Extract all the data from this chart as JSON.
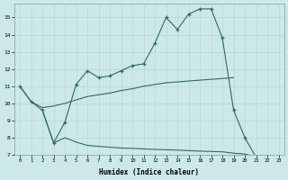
{
  "xlabel": "Humidex (Indice chaleur)",
  "bg_color": "#cde8e8",
  "grid_color": "#b8d8d8",
  "line_color": "#2e6b5e",
  "main_x": [
    0,
    1,
    2,
    3,
    4,
    5,
    6,
    7,
    8,
    9,
    10,
    11,
    12,
    13,
    14,
    15,
    16,
    17,
    18,
    19,
    20,
    21,
    22
  ],
  "main_y": [
    11.0,
    10.1,
    9.6,
    7.7,
    8.9,
    11.1,
    11.9,
    11.5,
    11.6,
    11.9,
    12.2,
    12.3,
    13.5,
    15.0,
    14.3,
    15.2,
    15.5,
    15.5,
    13.8,
    9.6,
    8.0,
    6.85,
    6.65
  ],
  "upper_x": [
    0,
    1,
    2,
    3,
    4,
    5,
    6,
    7,
    8,
    9,
    10,
    11,
    12,
    13,
    14,
    15,
    16,
    17,
    18,
    19
  ],
  "upper_y": [
    11.0,
    10.1,
    9.75,
    9.85,
    10.0,
    10.2,
    10.4,
    10.5,
    10.6,
    10.75,
    10.85,
    11.0,
    11.1,
    11.2,
    11.25,
    11.3,
    11.35,
    11.4,
    11.45,
    11.5
  ],
  "lower_x": [
    2,
    3,
    4,
    5,
    6,
    7,
    8,
    9,
    10,
    11,
    12,
    13,
    14,
    15,
    16,
    17,
    18,
    19,
    20,
    21,
    22
  ],
  "lower_y": [
    9.6,
    7.7,
    8.0,
    7.75,
    7.55,
    7.5,
    7.45,
    7.4,
    7.38,
    7.35,
    7.32,
    7.3,
    7.28,
    7.25,
    7.22,
    7.2,
    7.18,
    7.1,
    7.05,
    6.9,
    6.65
  ],
  "ylim": [
    7,
    15.8
  ],
  "xlim": [
    -0.5,
    23.5
  ],
  "yticks": [
    7,
    8,
    9,
    10,
    11,
    12,
    13,
    14,
    15
  ],
  "xticks": [
    0,
    1,
    2,
    3,
    4,
    5,
    6,
    7,
    8,
    9,
    10,
    11,
    12,
    13,
    14,
    15,
    16,
    17,
    18,
    19,
    20,
    21,
    22,
    23
  ]
}
